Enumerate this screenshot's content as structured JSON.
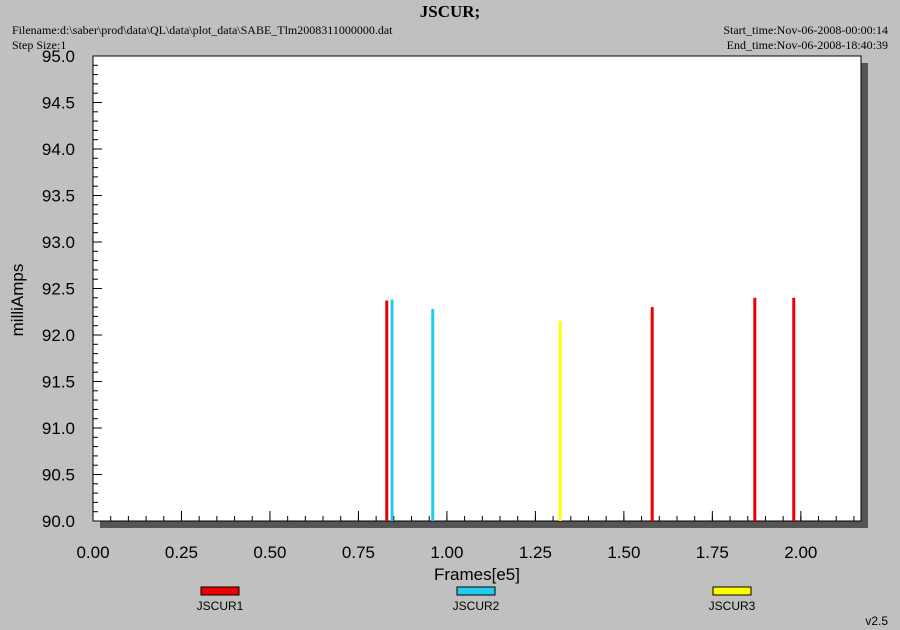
{
  "header": {
    "title": "JSCUR;",
    "filename": "Filename:d:\\saber\\prod\\data\\QL\\data\\plot_data\\SABE_Tlm2008311000000.dat",
    "step_size": "Step Size:1",
    "start_time": "Start_time:Nov-06-2008-00:00:14",
    "end_time": "End_time:Nov-06-2008-18:40:39"
  },
  "version": "v2.5",
  "chart_data": {
    "type": "bar",
    "xlabel": "Frames[e5]",
    "ylabel": "milliAmps",
    "xlim": [
      0,
      2.17
    ],
    "ylim": [
      90.0,
      95.0
    ],
    "x_ticks": [
      "0.00",
      "0.25",
      "0.50",
      "0.75",
      "1.00",
      "1.25",
      "1.50",
      "1.75",
      "2.00"
    ],
    "y_ticks": [
      "90.0",
      "90.5",
      "91.0",
      "91.5",
      "92.0",
      "92.5",
      "93.0",
      "93.5",
      "94.0",
      "94.5",
      "95.0"
    ],
    "grid": false,
    "legend_position": "bottom",
    "series": [
      {
        "name": "JSCUR1",
        "color": "#ee0000",
        "x": [
          0.83,
          1.58,
          1.87,
          1.98
        ],
        "values": [
          92.37,
          92.3,
          92.4,
          92.4
        ]
      },
      {
        "name": "JSCUR2",
        "color": "#22ccee",
        "x": [
          0.845,
          0.96
        ],
        "values": [
          92.38,
          92.28
        ]
      },
      {
        "name": "JSCUR3",
        "color": "#ffff00",
        "x": [
          1.32
        ],
        "values": [
          92.15
        ]
      }
    ]
  }
}
